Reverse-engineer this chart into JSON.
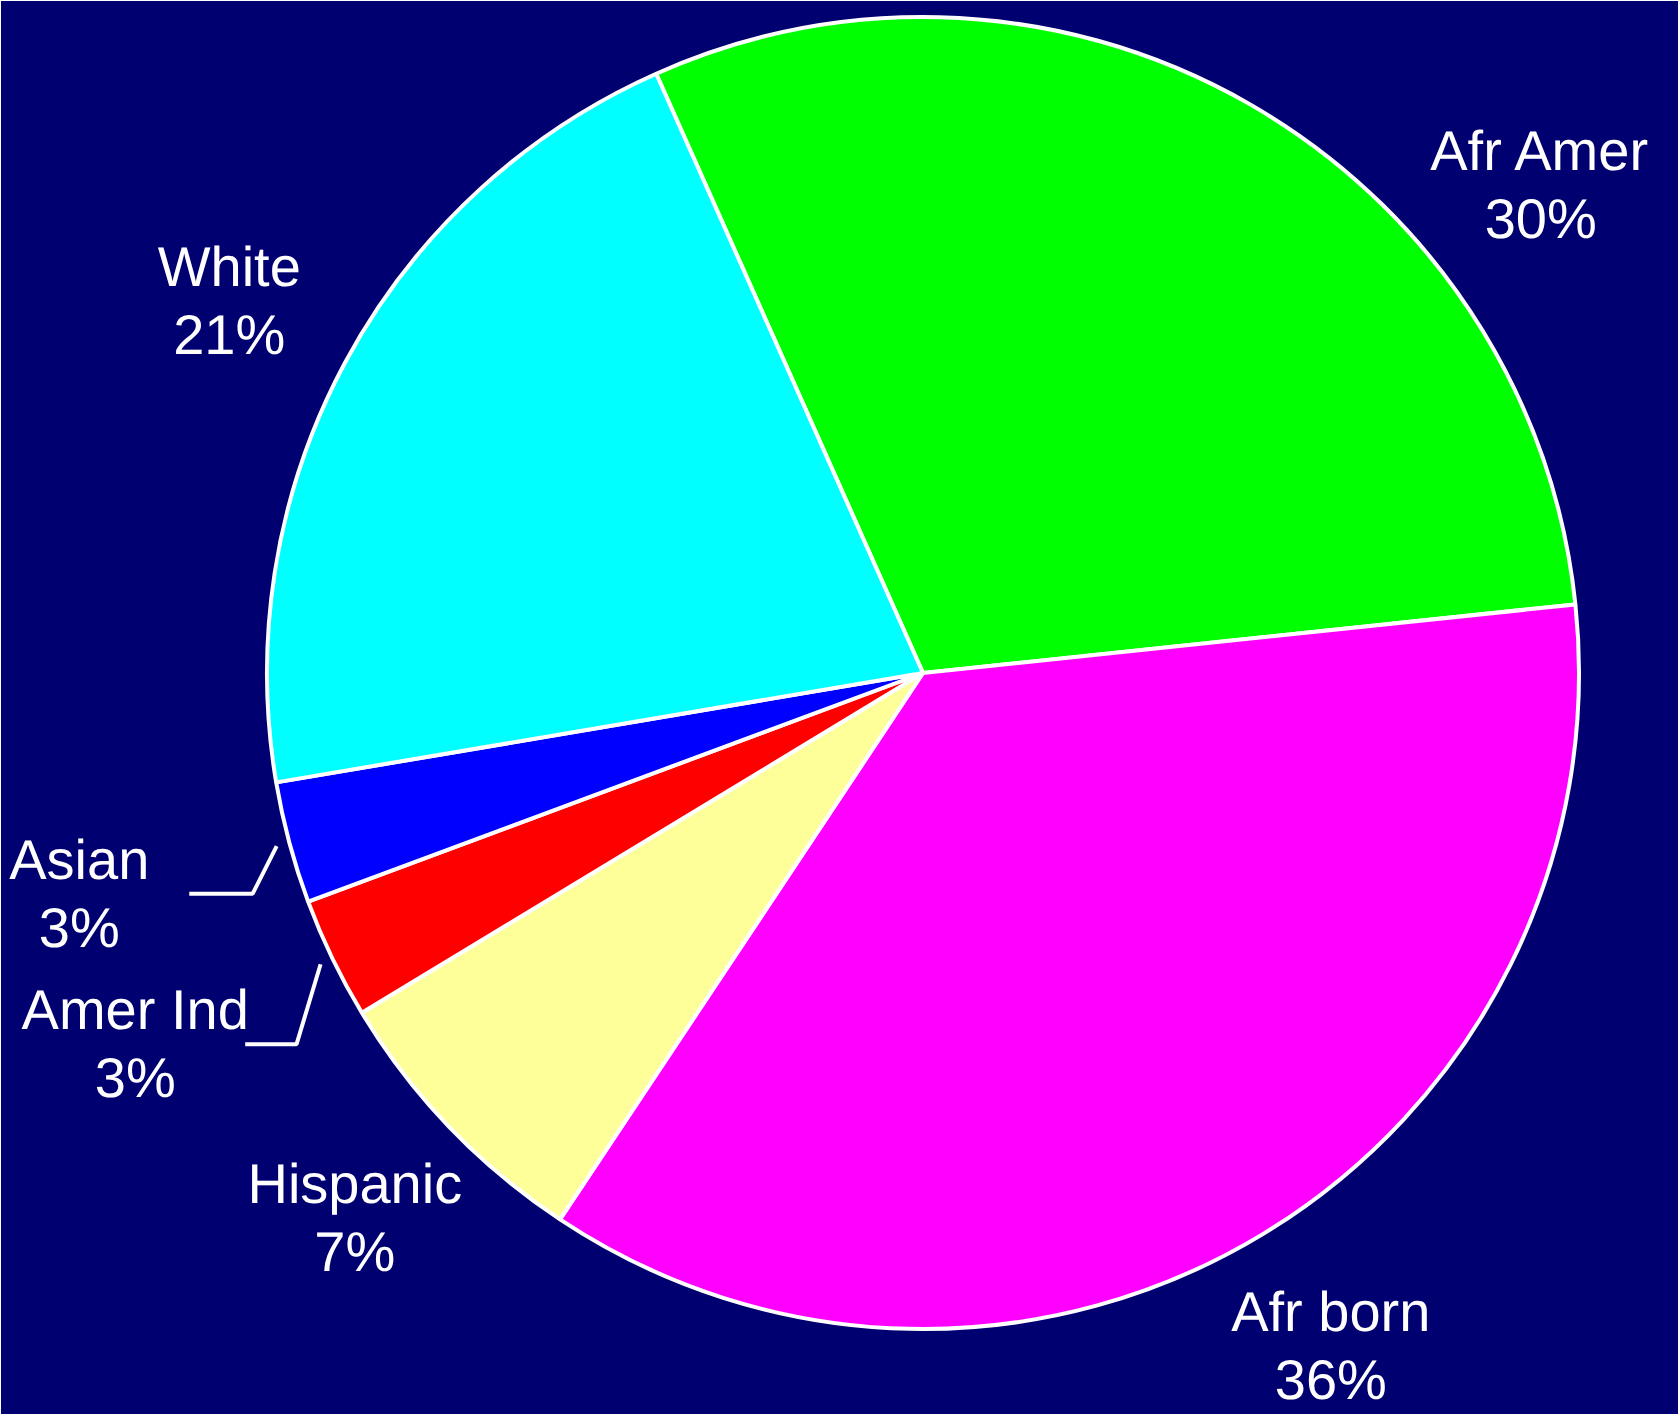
{
  "chart_data": {
    "type": "pie",
    "categories": [
      "Afr Amer",
      "Afr born",
      "Hispanic",
      "Amer Ind",
      "Asian",
      "White"
    ],
    "values": [
      30,
      36,
      7,
      3,
      3,
      21
    ],
    "colors": [
      "#00ff00",
      "#ff00ff",
      "#ffff99",
      "#ff0000",
      "#0000ff",
      "#00ffff"
    ],
    "value_labels": [
      "30%",
      "36%",
      "7%",
      "3%",
      "3%",
      "21%"
    ]
  }
}
